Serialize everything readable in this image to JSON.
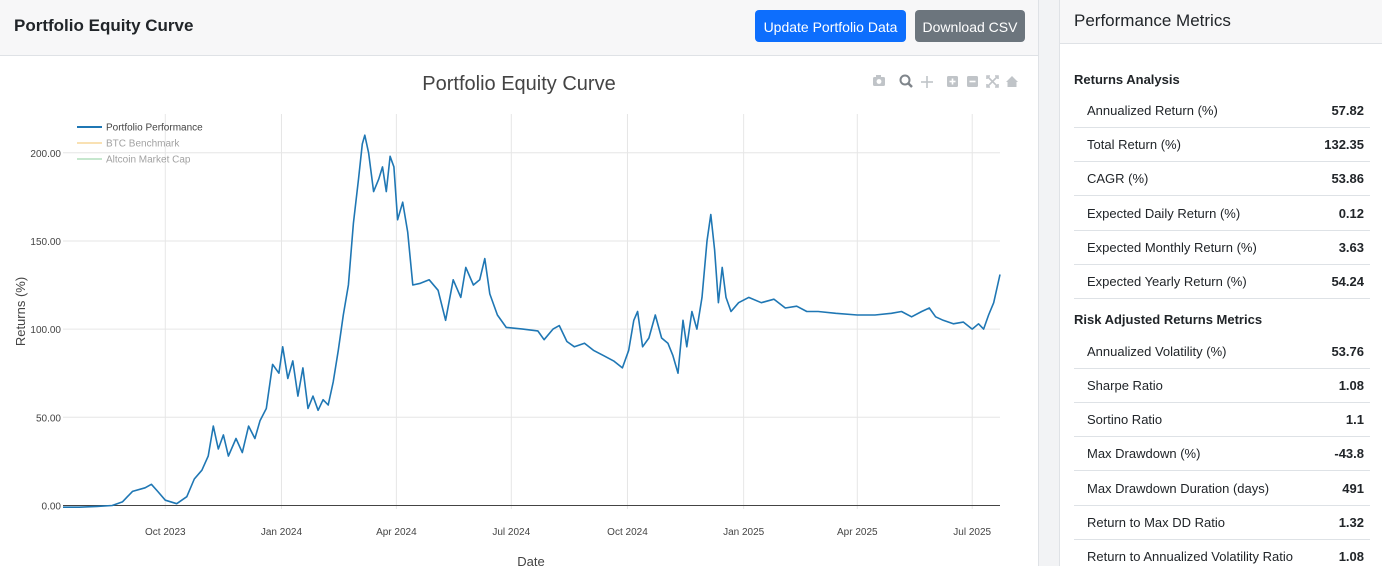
{
  "header": {
    "title": "Portfolio Equity Curve",
    "update_button": "Update Portfolio Data",
    "download_button": "Download CSV"
  },
  "chart_data": {
    "type": "line",
    "title": "Portfolio Equity Curve",
    "xlabel": "Date",
    "ylabel": "Returns (%)",
    "ylim": [
      -2,
      222
    ],
    "xlim": [
      "2023-07-12",
      "2025-07-23"
    ],
    "x_ticks": [
      {
        "date": "2023-10-01",
        "label": "Oct 2023"
      },
      {
        "date": "2024-01-01",
        "label": "Jan 2024"
      },
      {
        "date": "2024-04-01",
        "label": "Apr 2024"
      },
      {
        "date": "2024-07-01",
        "label": "Jul 2024"
      },
      {
        "date": "2024-10-01",
        "label": "Oct 2024"
      },
      {
        "date": "2025-01-01",
        "label": "Jan 2025"
      },
      {
        "date": "2025-04-01",
        "label": "Apr 2025"
      },
      {
        "date": "2025-07-01",
        "label": "Jul 2025"
      }
    ],
    "y_ticks": [
      {
        "value": 0,
        "label": "0.00"
      },
      {
        "value": 50,
        "label": "50.00"
      },
      {
        "value": 100,
        "label": "100.00"
      },
      {
        "value": 150,
        "label": "150.00"
      },
      {
        "value": 200,
        "label": "200.00"
      }
    ],
    "legend": [
      {
        "name": "Portfolio Performance",
        "color": "#1f77b4",
        "active": true
      },
      {
        "name": "BTC Benchmark",
        "color": "#f5c46a",
        "active": false
      },
      {
        "name": "Altcoin Market Cap",
        "color": "#8fd19e",
        "active": false
      }
    ],
    "series": [
      {
        "name": "Portfolio Performance",
        "color": "#1f77b4",
        "points": [
          [
            "2023-07-12",
            -1
          ],
          [
            "2023-07-25",
            -1
          ],
          [
            "2023-08-08",
            -0.5
          ],
          [
            "2023-08-20",
            0
          ],
          [
            "2023-08-28",
            2
          ],
          [
            "2023-09-05",
            8
          ],
          [
            "2023-09-15",
            10
          ],
          [
            "2023-09-20",
            12
          ],
          [
            "2023-09-25",
            8
          ],
          [
            "2023-10-01",
            3
          ],
          [
            "2023-10-10",
            1
          ],
          [
            "2023-10-18",
            5
          ],
          [
            "2023-10-24",
            15
          ],
          [
            "2023-10-30",
            20
          ],
          [
            "2023-11-04",
            28
          ],
          [
            "2023-11-08",
            45
          ],
          [
            "2023-11-12",
            32
          ],
          [
            "2023-11-16",
            40
          ],
          [
            "2023-11-20",
            28
          ],
          [
            "2023-11-26",
            38
          ],
          [
            "2023-12-01",
            30
          ],
          [
            "2023-12-06",
            45
          ],
          [
            "2023-12-11",
            38
          ],
          [
            "2023-12-15",
            48
          ],
          [
            "2023-12-20",
            55
          ],
          [
            "2023-12-25",
            80
          ],
          [
            "2023-12-30",
            75
          ],
          [
            "2024-01-02",
            90
          ],
          [
            "2024-01-06",
            72
          ],
          [
            "2024-01-10",
            82
          ],
          [
            "2024-01-14",
            62
          ],
          [
            "2024-01-18",
            78
          ],
          [
            "2024-01-22",
            55
          ],
          [
            "2024-01-26",
            62
          ],
          [
            "2024-01-30",
            54
          ],
          [
            "2024-02-03",
            60
          ],
          [
            "2024-02-07",
            57
          ],
          [
            "2024-02-11",
            70
          ],
          [
            "2024-02-15",
            88
          ],
          [
            "2024-02-19",
            108
          ],
          [
            "2024-02-23",
            125
          ],
          [
            "2024-02-27",
            160
          ],
          [
            "2024-03-02",
            185
          ],
          [
            "2024-03-05",
            205
          ],
          [
            "2024-03-07",
            210
          ],
          [
            "2024-03-10",
            200
          ],
          [
            "2024-03-14",
            178
          ],
          [
            "2024-03-18",
            185
          ],
          [
            "2024-03-21",
            192
          ],
          [
            "2024-03-24",
            178
          ],
          [
            "2024-03-27",
            198
          ],
          [
            "2024-03-30",
            192
          ],
          [
            "2024-04-02",
            162
          ],
          [
            "2024-04-06",
            172
          ],
          [
            "2024-04-10",
            155
          ],
          [
            "2024-04-14",
            125
          ],
          [
            "2024-04-20",
            126
          ],
          [
            "2024-04-27",
            128
          ],
          [
            "2024-05-04",
            122
          ],
          [
            "2024-05-10",
            105
          ],
          [
            "2024-05-16",
            128
          ],
          [
            "2024-05-22",
            118
          ],
          [
            "2024-05-26",
            135
          ],
          [
            "2024-06-01",
            125
          ],
          [
            "2024-06-06",
            128
          ],
          [
            "2024-06-10",
            140
          ],
          [
            "2024-06-14",
            120
          ],
          [
            "2024-06-20",
            108
          ],
          [
            "2024-06-27",
            101
          ],
          [
            "2024-07-10",
            100
          ],
          [
            "2024-07-22",
            99
          ],
          [
            "2024-07-27",
            94
          ],
          [
            "2024-08-03",
            100
          ],
          [
            "2024-08-08",
            102
          ],
          [
            "2024-08-14",
            93
          ],
          [
            "2024-08-20",
            90
          ],
          [
            "2024-08-28",
            92
          ],
          [
            "2024-09-04",
            88
          ],
          [
            "2024-09-12",
            85
          ],
          [
            "2024-09-20",
            82
          ],
          [
            "2024-09-27",
            78
          ],
          [
            "2024-10-02",
            88
          ],
          [
            "2024-10-06",
            105
          ],
          [
            "2024-10-09",
            110
          ],
          [
            "2024-10-13",
            90
          ],
          [
            "2024-10-18",
            95
          ],
          [
            "2024-10-23",
            108
          ],
          [
            "2024-10-28",
            95
          ],
          [
            "2024-11-02",
            92
          ],
          [
            "2024-11-06",
            85
          ],
          [
            "2024-11-10",
            75
          ],
          [
            "2024-11-14",
            105
          ],
          [
            "2024-11-17",
            90
          ],
          [
            "2024-11-21",
            110
          ],
          [
            "2024-11-25",
            100
          ],
          [
            "2024-11-29",
            118
          ],
          [
            "2024-12-03",
            150
          ],
          [
            "2024-12-06",
            165
          ],
          [
            "2024-12-09",
            145
          ],
          [
            "2024-12-12",
            115
          ],
          [
            "2024-12-15",
            135
          ],
          [
            "2024-12-18",
            118
          ],
          [
            "2024-12-22",
            110
          ],
          [
            "2024-12-28",
            115
          ],
          [
            "2025-01-05",
            118
          ],
          [
            "2025-01-15",
            115
          ],
          [
            "2025-01-25",
            117
          ],
          [
            "2025-02-03",
            112
          ],
          [
            "2025-02-12",
            113
          ],
          [
            "2025-02-20",
            110
          ],
          [
            "2025-03-01",
            110
          ],
          [
            "2025-03-15",
            109
          ],
          [
            "2025-04-01",
            108
          ],
          [
            "2025-04-15",
            108
          ],
          [
            "2025-04-28",
            109
          ],
          [
            "2025-05-06",
            110
          ],
          [
            "2025-05-14",
            107
          ],
          [
            "2025-05-22",
            110
          ],
          [
            "2025-05-28",
            112
          ],
          [
            "2025-06-02",
            107
          ],
          [
            "2025-06-08",
            105
          ],
          [
            "2025-06-16",
            103
          ],
          [
            "2025-06-24",
            104
          ],
          [
            "2025-07-01",
            100
          ],
          [
            "2025-07-06",
            103
          ],
          [
            "2025-07-10",
            100
          ],
          [
            "2025-07-14",
            108
          ],
          [
            "2025-07-18",
            115
          ],
          [
            "2025-07-23",
            131
          ]
        ]
      }
    ]
  },
  "metrics": {
    "title": "Performance Metrics",
    "returns_section": "Returns Analysis",
    "returns": [
      {
        "label": "Annualized Return (%)",
        "value": "57.82"
      },
      {
        "label": "Total Return (%)",
        "value": "132.35"
      },
      {
        "label": "CAGR (%)",
        "value": "53.86"
      },
      {
        "label": "Expected Daily Return (%)",
        "value": "0.12"
      },
      {
        "label": "Expected Monthly Return (%)",
        "value": "3.63"
      },
      {
        "label": "Expected Yearly Return (%)",
        "value": "54.24"
      }
    ],
    "risk_section": "Risk Adjusted Returns Metrics",
    "risk": [
      {
        "label": "Annualized Volatility (%)",
        "value": "53.76"
      },
      {
        "label": "Sharpe Ratio",
        "value": "1.08"
      },
      {
        "label": "Sortino Ratio",
        "value": "1.1"
      },
      {
        "label": "Max Drawdown (%)",
        "value": "-43.8"
      },
      {
        "label": "Max Drawdown Duration (days)",
        "value": "491"
      },
      {
        "label": "Return to Max DD Ratio",
        "value": "1.32"
      },
      {
        "label": "Return to Annualized Volatility Ratio",
        "value": "1.08"
      }
    ]
  }
}
